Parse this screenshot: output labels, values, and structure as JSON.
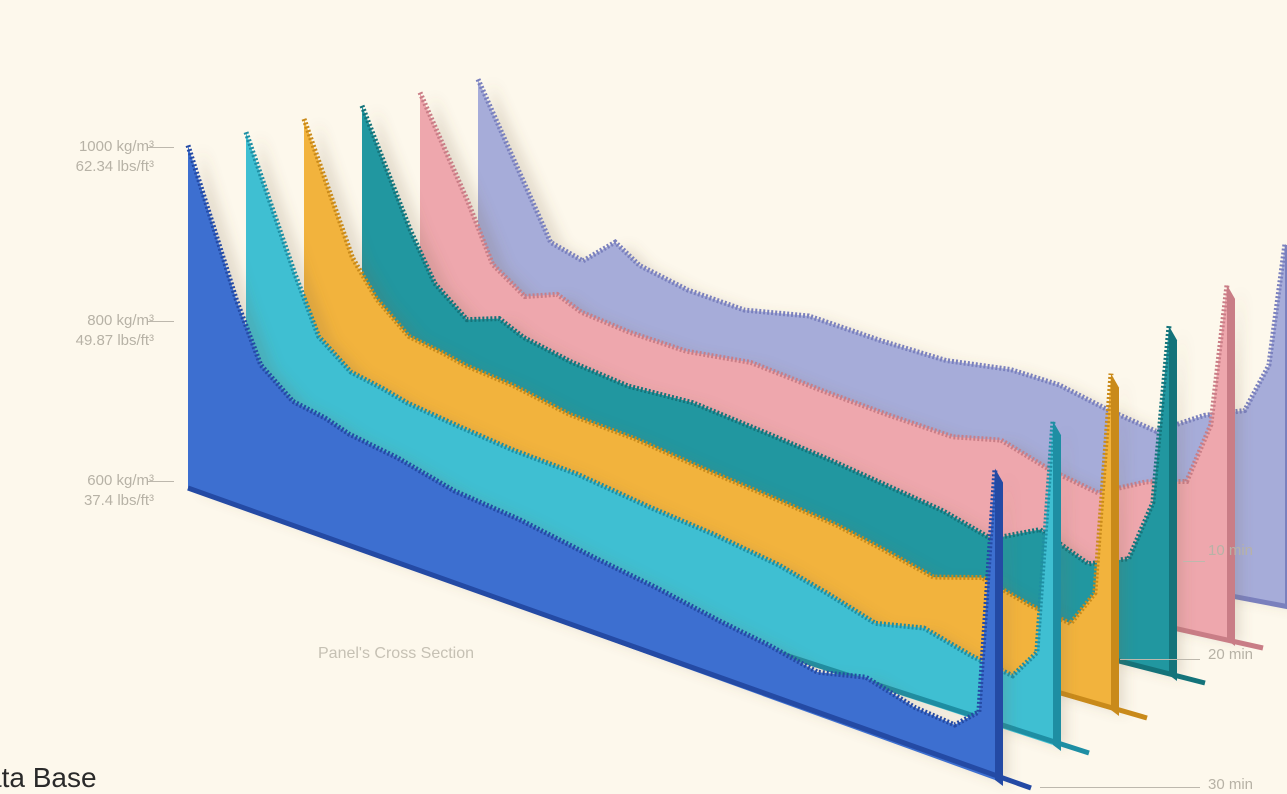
{
  "chart_data": {
    "type": "area",
    "title": "",
    "xlabel": "Panel's Cross Section",
    "y_axis_labels": [
      {
        "metric": "1000 kg/m³",
        "imperial": "62.34 lbs/ft³",
        "value": 1000
      },
      {
        "metric": "800 kg/m³",
        "imperial": "49.87 lbs/ft³",
        "value": 800
      },
      {
        "metric": "600 kg/m³",
        "imperial": "37.4 lbs/ft³",
        "value": 600
      }
    ],
    "time_labels": [
      "10 min",
      "20 min",
      "30 min"
    ],
    "ylim": [
      520,
      1130
    ],
    "x_range": [
      0,
      1
    ],
    "series": [
      {
        "color": "#a6acd9",
        "dark": "#7a80bd",
        "points": [
          [
            0,
            1120
          ],
          [
            0.03,
            1040
          ],
          [
            0.06,
            960
          ],
          [
            0.09,
            880
          ],
          [
            0.13,
            860
          ],
          [
            0.17,
            900
          ],
          [
            0.2,
            870
          ],
          [
            0.26,
            845
          ],
          [
            0.33,
            830
          ],
          [
            0.41,
            840
          ],
          [
            0.5,
            822
          ],
          [
            0.58,
            810
          ],
          [
            0.66,
            815
          ],
          [
            0.72,
            805
          ],
          [
            0.78,
            780
          ],
          [
            0.84,
            760
          ],
          [
            0.9,
            800
          ],
          [
            0.95,
            820
          ],
          [
            0.98,
            900
          ],
          [
            1.0,
            1100
          ]
        ]
      },
      {
        "color": "#eea7ad",
        "dark": "#c97d86",
        "points": [
          [
            0,
            1110
          ],
          [
            0.03,
            1030
          ],
          [
            0.06,
            950
          ],
          [
            0.09,
            860
          ],
          [
            0.13,
            820
          ],
          [
            0.17,
            835
          ],
          [
            0.2,
            815
          ],
          [
            0.26,
            800
          ],
          [
            0.33,
            790
          ],
          [
            0.41,
            795
          ],
          [
            0.5,
            775
          ],
          [
            0.58,
            760
          ],
          [
            0.66,
            748
          ],
          [
            0.72,
            760
          ],
          [
            0.78,
            730
          ],
          [
            0.84,
            710
          ],
          [
            0.9,
            745
          ],
          [
            0.95,
            760
          ],
          [
            0.98,
            860
          ],
          [
            1.0,
            1090
          ]
        ]
      },
      {
        "color": "#2197a0",
        "dark": "#14737a",
        "points": [
          [
            0,
            1100
          ],
          [
            0.03,
            1010
          ],
          [
            0.06,
            920
          ],
          [
            0.09,
            845
          ],
          [
            0.13,
            800
          ],
          [
            0.17,
            815
          ],
          [
            0.2,
            795
          ],
          [
            0.26,
            775
          ],
          [
            0.33,
            760
          ],
          [
            0.41,
            760
          ],
          [
            0.5,
            742
          ],
          [
            0.58,
            725
          ],
          [
            0.66,
            705
          ],
          [
            0.72,
            690
          ],
          [
            0.78,
            665
          ],
          [
            0.84,
            700
          ],
          [
            0.9,
            665
          ],
          [
            0.95,
            690
          ],
          [
            0.98,
            790
          ],
          [
            1.0,
            1080
          ]
        ]
      },
      {
        "color": "#f2b33d",
        "dark": "#c98a1a",
        "points": [
          [
            0,
            1090
          ],
          [
            0.03,
            990
          ],
          [
            0.06,
            890
          ],
          [
            0.09,
            835
          ],
          [
            0.13,
            790
          ],
          [
            0.17,
            780
          ],
          [
            0.2,
            770
          ],
          [
            0.26,
            760
          ],
          [
            0.33,
            740
          ],
          [
            0.41,
            732
          ],
          [
            0.5,
            715
          ],
          [
            0.58,
            702
          ],
          [
            0.66,
            688
          ],
          [
            0.72,
            670
          ],
          [
            0.78,
            650
          ],
          [
            0.84,
            672
          ],
          [
            0.9,
            650
          ],
          [
            0.95,
            640
          ],
          [
            0.98,
            700
          ],
          [
            1.0,
            1060
          ]
        ]
      },
      {
        "color": "#3fbfd2",
        "dark": "#1e8ea3",
        "points": [
          [
            0,
            1080
          ],
          [
            0.03,
            980
          ],
          [
            0.06,
            880
          ],
          [
            0.09,
            790
          ],
          [
            0.13,
            750
          ],
          [
            0.17,
            740
          ],
          [
            0.2,
            730
          ],
          [
            0.26,
            720
          ],
          [
            0.33,
            710
          ],
          [
            0.41,
            705
          ],
          [
            0.5,
            690
          ],
          [
            0.58,
            680
          ],
          [
            0.66,
            665
          ],
          [
            0.72,
            645
          ],
          [
            0.78,
            622
          ],
          [
            0.84,
            640
          ],
          [
            0.9,
            620
          ],
          [
            0.95,
            610
          ],
          [
            0.98,
            660
          ],
          [
            1.0,
            1040
          ]
        ]
      },
      {
        "color": "#3d6fd0",
        "dark": "#244aa4",
        "points": [
          [
            0,
            1070
          ],
          [
            0.03,
            960
          ],
          [
            0.06,
            850
          ],
          [
            0.09,
            760
          ],
          [
            0.13,
            720
          ],
          [
            0.17,
            712
          ],
          [
            0.2,
            700
          ],
          [
            0.26,
            690
          ],
          [
            0.33,
            670
          ],
          [
            0.41,
            662
          ],
          [
            0.5,
            645
          ],
          [
            0.58,
            632
          ],
          [
            0.66,
            615
          ],
          [
            0.72,
            605
          ],
          [
            0.78,
            590
          ],
          [
            0.84,
            610
          ],
          [
            0.9,
            590
          ],
          [
            0.95,
            585
          ],
          [
            0.98,
            620
          ],
          [
            1.0,
            1020
          ]
        ]
      }
    ]
  },
  "footer": {
    "title": "ata Base"
  }
}
